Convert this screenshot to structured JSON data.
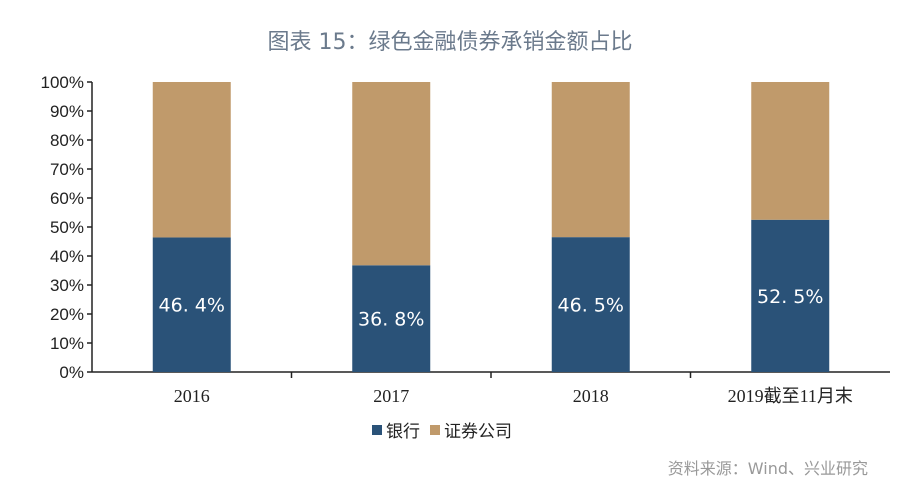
{
  "chart_data": {
    "type": "bar",
    "stacked": true,
    "title": "图表 15：绿色金融债券承销金额占比",
    "categories": [
      "2016",
      "2017",
      "2018",
      "2019截至11月末"
    ],
    "series": [
      {
        "name": "银行",
        "values": [
          46.4,
          36.8,
          46.5,
          52.5
        ],
        "labels": [
          "46. 4%",
          "36. 8%",
          "46. 5%",
          "52. 5%"
        ],
        "color": "#2a5278"
      },
      {
        "name": "证券公司",
        "values": [
          53.6,
          63.2,
          53.5,
          47.5
        ],
        "color": "#c09a6b"
      }
    ],
    "ylim": [
      0,
      100
    ],
    "yticks": [
      "0%",
      "10%",
      "20%",
      "30%",
      "40%",
      "50%",
      "60%",
      "70%",
      "80%",
      "90%",
      "100%"
    ],
    "grid": false,
    "legend": "bottom-left"
  },
  "source": "资料来源：Wind、兴业研究"
}
